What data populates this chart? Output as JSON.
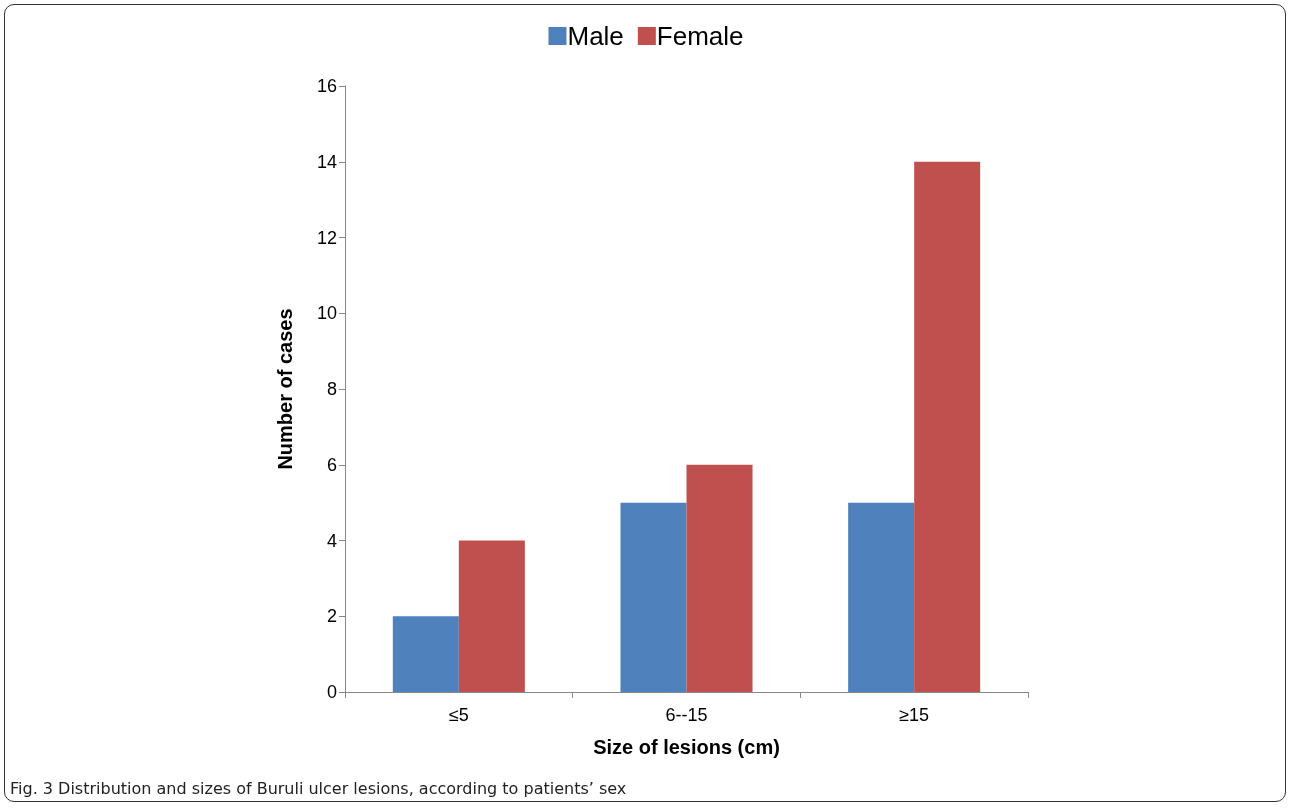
{
  "chart_data": {
    "type": "bar",
    "xlabel": "Size of lesions (cm)",
    "ylabel": "Number of cases",
    "categories": [
      "≤5",
      "6--15",
      "≥15"
    ],
    "series": [
      {
        "name": "Male",
        "color": "#4f81bd",
        "values": [
          2,
          5,
          5
        ]
      },
      {
        "name": "Female",
        "color": "#c0504d",
        "values": [
          4,
          6,
          14
        ]
      }
    ],
    "ylim": [
      0,
      16
    ],
    "yticks": [
      0,
      2,
      4,
      6,
      8,
      10,
      12,
      14,
      16
    ],
    "grid": false,
    "legend": "top",
    "annotations": [
      "Fig. 3 Distribution and sizes of Buruli ulcer lesions, according to patients’ sex"
    ]
  }
}
